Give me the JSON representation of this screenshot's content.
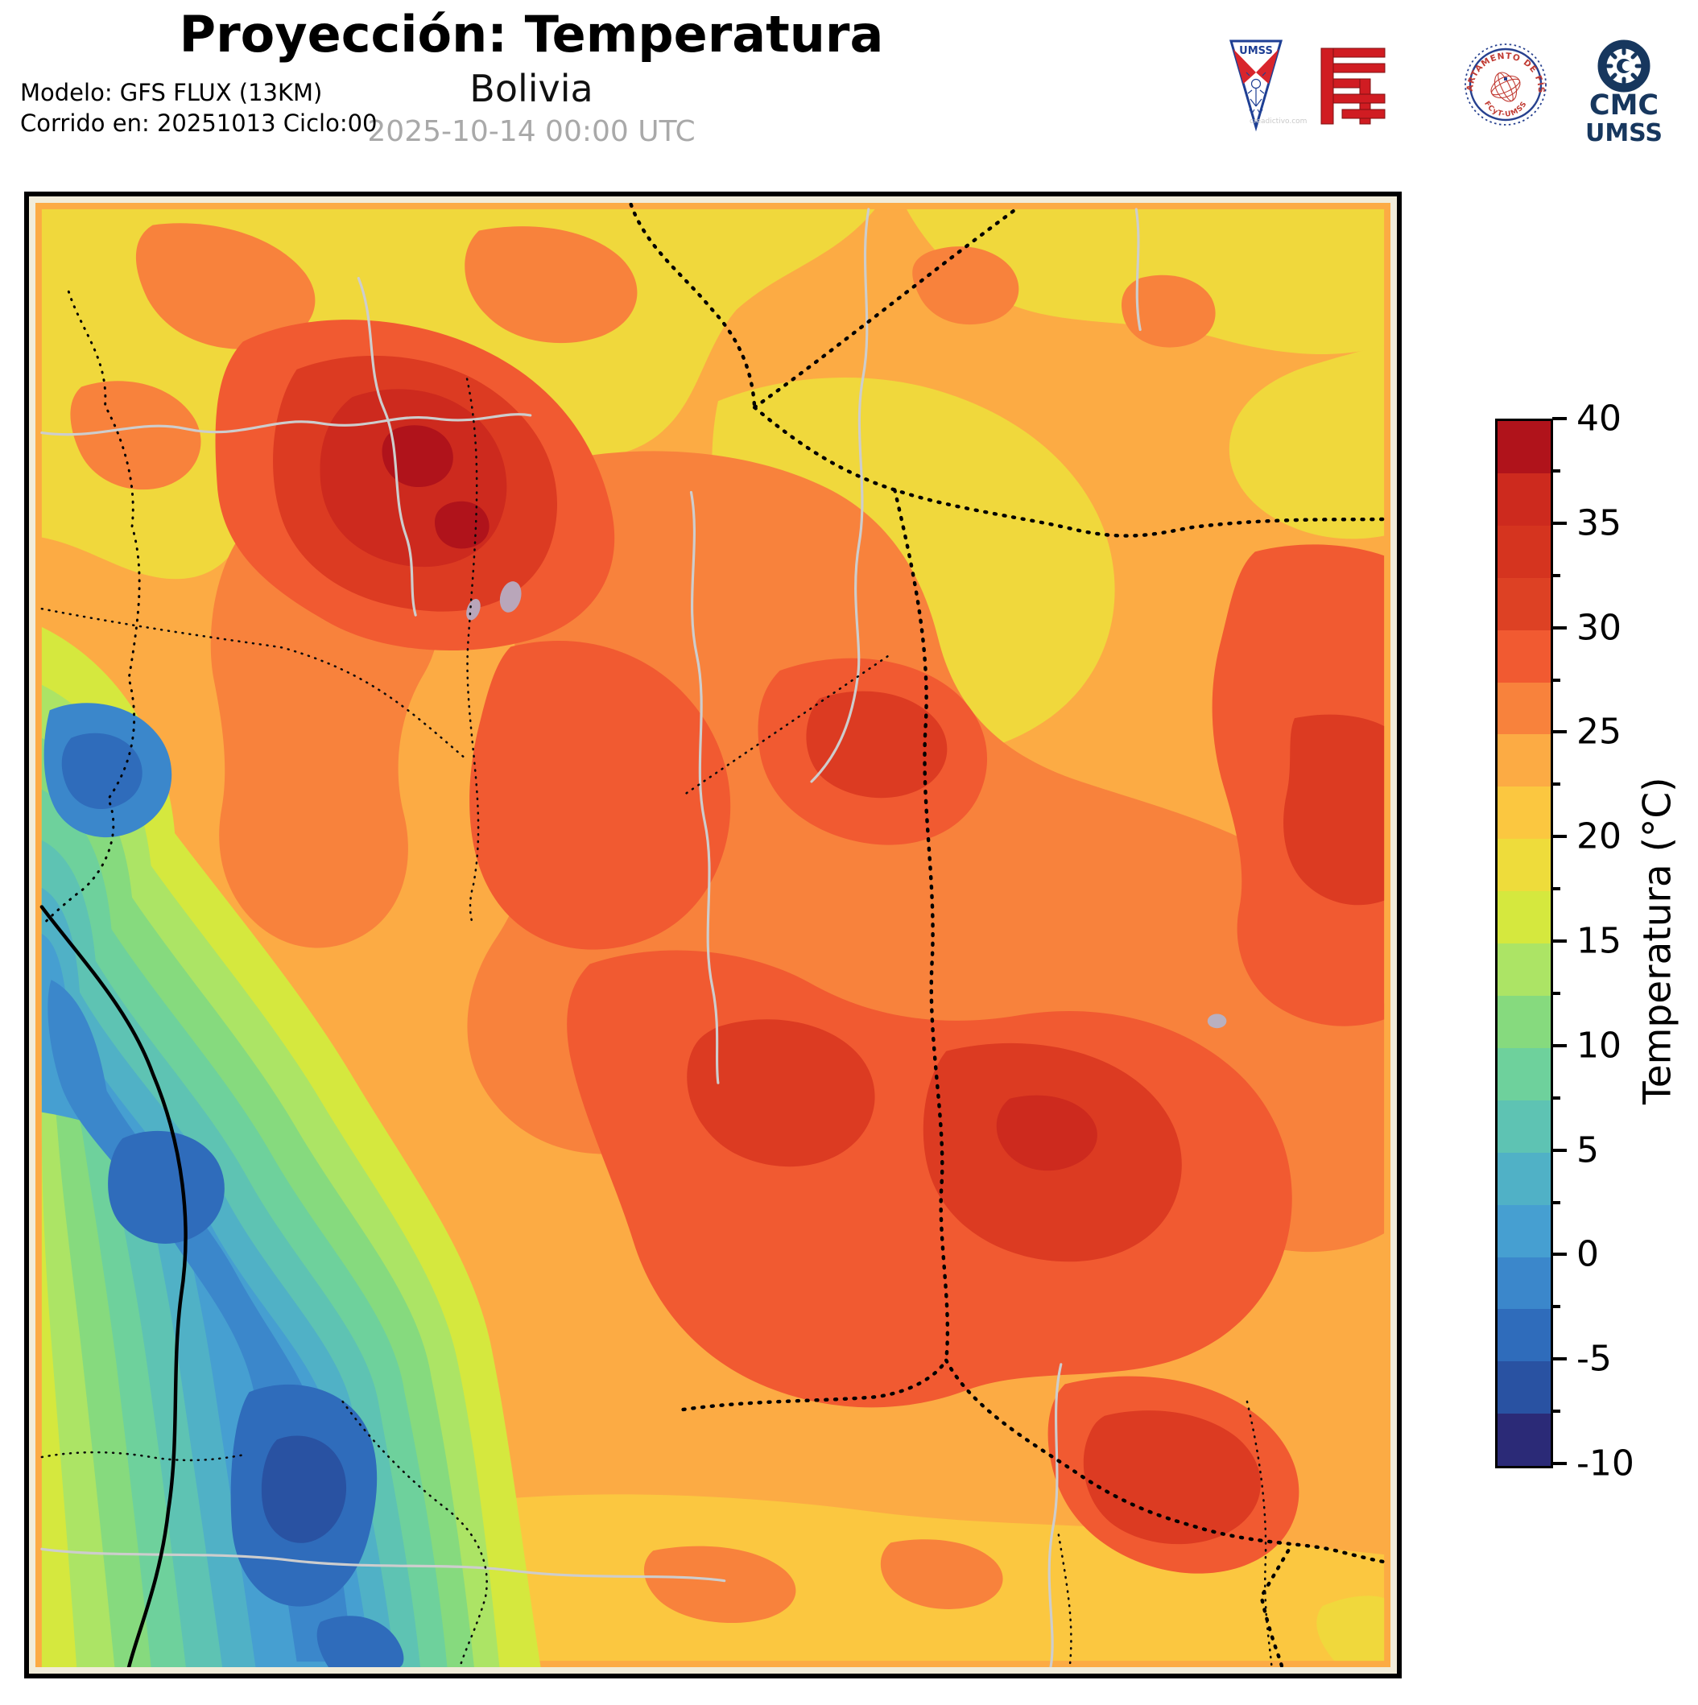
{
  "header": {
    "title": "Proyección: Temperatura",
    "subtitle": "Bolivia",
    "datetime": "2025-10-14 00:00 UTC",
    "model_line1": "Modelo: GFS FLUX (13KM)",
    "model_line2": "Corrido en: 20251013 Ciclo:00"
  },
  "logos": {
    "umss": {
      "text": "UMSS",
      "watermark": "creadictivo.com"
    },
    "fisica_seal": {
      "text_top": "DEPARTAMENTO DE FÍSICA",
      "text_bottom": "FCyT-UMSS"
    },
    "cmc": {
      "line1": "CMC",
      "line2": "UMSS"
    }
  },
  "colorbar": {
    "label": "Temperatura (°C)",
    "max": 40,
    "min": -10,
    "step": 2.5,
    "major_tick_labels": [
      "40",
      "35",
      "30",
      "25",
      "20",
      "15",
      "10",
      "5",
      "0",
      "-5",
      "-10"
    ],
    "segments_top_to_bottom": [
      "#b0131b",
      "#cd2a1e",
      "#d5341f",
      "#dd4124",
      "#f15a31",
      "#f8823c",
      "#fcab44",
      "#fbc740",
      "#eedc3b",
      "#d5e83e",
      "#ace465",
      "#86da7e",
      "#6ed19c",
      "#5ec3b3",
      "#50b1c6",
      "#469fd1",
      "#3b87cb",
      "#2f6cbb",
      "#2952a2",
      "#2b2a77"
    ]
  },
  "chart_data": {
    "type": "heatmap",
    "title": "Proyección: Temperatura",
    "region": "Bolivia",
    "timestamp": "2025-10-14 00:00 UTC",
    "model": "GFS FLUX (13KM)",
    "run": "Corrido en: 20251013 Ciclo:00",
    "colorbar_label": "Temperatura (°C)",
    "colorbar_range": [
      -10,
      40
    ],
    "colorbar_step": 2.5,
    "legend_position": "right"
  }
}
